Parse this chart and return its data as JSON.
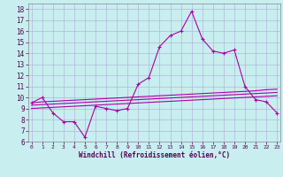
{
  "xlabel": "Windchill (Refroidissement éolien,°C)",
  "x_ticks": [
    0,
    1,
    2,
    3,
    4,
    5,
    6,
    7,
    8,
    9,
    10,
    11,
    12,
    13,
    14,
    15,
    16,
    17,
    18,
    19,
    20,
    21,
    22,
    23
  ],
  "y_ticks": [
    6,
    7,
    8,
    9,
    10,
    11,
    12,
    13,
    14,
    15,
    16,
    17,
    18
  ],
  "ylim": [
    6.0,
    18.5
  ],
  "xlim": [
    -0.3,
    23.3
  ],
  "bg_color": "#c8eef0",
  "line_color": "#aa00aa",
  "grid_color": "#b0b8d8",
  "series1_x": [
    0,
    1,
    2,
    3,
    4,
    5,
    6,
    7,
    8,
    9,
    10,
    11,
    12,
    13,
    14,
    15,
    16,
    17,
    18,
    19,
    20,
    21,
    22,
    23
  ],
  "series1_y": [
    9.5,
    10.0,
    8.6,
    7.8,
    7.8,
    6.4,
    9.2,
    9.0,
    8.8,
    9.0,
    11.2,
    11.8,
    14.6,
    15.6,
    16.0,
    17.8,
    15.3,
    14.2,
    14.0,
    14.3,
    11.0,
    9.8,
    9.6,
    8.6
  ],
  "series2_x": [
    0,
    1,
    2,
    3,
    4,
    5,
    6,
    7,
    8,
    9,
    10,
    11,
    12,
    13,
    14,
    15,
    16,
    17,
    18,
    19,
    20,
    21,
    22,
    23
  ],
  "series2_y": [
    9.5,
    9.6,
    9.65,
    9.7,
    9.75,
    9.8,
    9.85,
    9.9,
    9.95,
    10.0,
    10.05,
    10.1,
    10.15,
    10.2,
    10.25,
    10.3,
    10.35,
    10.4,
    10.45,
    10.5,
    10.55,
    10.6,
    10.7,
    10.75
  ],
  "series3_x": [
    0,
    1,
    2,
    3,
    4,
    5,
    6,
    7,
    8,
    9,
    10,
    11,
    12,
    13,
    14,
    15,
    16,
    17,
    18,
    19,
    20,
    21,
    22,
    23
  ],
  "series3_y": [
    9.3,
    9.35,
    9.4,
    9.45,
    9.5,
    9.55,
    9.6,
    9.65,
    9.7,
    9.75,
    9.8,
    9.85,
    9.9,
    9.95,
    10.0,
    10.05,
    10.1,
    10.15,
    10.2,
    10.25,
    10.3,
    10.35,
    10.4,
    10.45
  ],
  "series4_x": [
    0,
    1,
    2,
    3,
    4,
    5,
    6,
    7,
    8,
    9,
    10,
    11,
    12,
    13,
    14,
    15,
    16,
    17,
    18,
    19,
    20,
    21,
    22,
    23
  ],
  "series4_y": [
    9.0,
    9.05,
    9.1,
    9.15,
    9.2,
    9.25,
    9.3,
    9.35,
    9.4,
    9.45,
    9.5,
    9.55,
    9.6,
    9.65,
    9.7,
    9.75,
    9.8,
    9.85,
    9.9,
    9.95,
    10.0,
    10.05,
    10.1,
    10.15
  ]
}
